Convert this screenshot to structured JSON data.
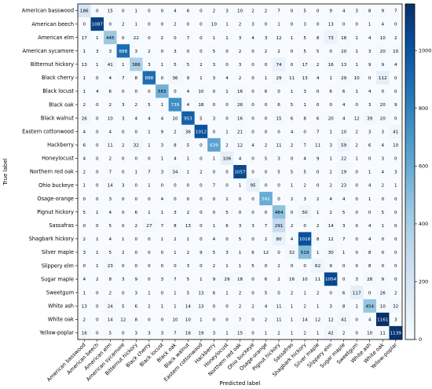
{
  "chart_data": {
    "type": "heatmap",
    "title": "",
    "xlabel": "Predicted label",
    "ylabel": "True label",
    "labels": [
      "American basswood",
      "American beech",
      "American elm",
      "American sycamore",
      "Bitternut hickory",
      "Black cherry",
      "Black locust",
      "Black oak",
      "Black walnut",
      "Eastern cottonwood",
      "Hackberry",
      "Honeylocust",
      "Northern red oak",
      "Ohio buckeye",
      "Osage-orange",
      "Pignut hickory",
      "Sassafras",
      "Shagbark hickory",
      "Silver maple",
      "Slippery elm",
      "Sugar maple",
      "Sweetgum",
      "White ash",
      "White oak",
      "Yellow-poplar"
    ],
    "matrix": [
      [
        186,
        0,
        15,
        0,
        1,
        0,
        0,
        4,
        6,
        0,
        2,
        3,
        10,
        2,
        2,
        7,
        0,
        5,
        0,
        9,
        4,
        3,
        8,
        9,
        7
      ],
      [
        0,
        1087,
        0,
        2,
        1,
        0,
        0,
        2,
        0,
        0,
        10,
        1,
        2,
        3,
        0,
        1,
        0,
        3,
        0,
        13,
        0,
        0,
        1,
        4,
        0
      ],
      [
        17,
        1,
        445,
        0,
        22,
        0,
        2,
        0,
        7,
        0,
        1,
        1,
        3,
        4,
        3,
        12,
        1,
        5,
        8,
        73,
        18,
        1,
        4,
        10,
        2
      ],
      [
        1,
        3,
        3,
        888,
        3,
        2,
        0,
        3,
        0,
        0,
        5,
        0,
        2,
        0,
        2,
        2,
        0,
        5,
        5,
        0,
        20,
        1,
        3,
        20,
        10
      ],
      [
        13,
        1,
        41,
        1,
        386,
        3,
        1,
        5,
        5,
        2,
        3,
        0,
        3,
        0,
        0,
        74,
        0,
        17,
        2,
        16,
        13,
        1,
        9,
        9,
        4
      ],
      [
        1,
        0,
        4,
        7,
        8,
        888,
        0,
        36,
        9,
        1,
        3,
        4,
        2,
        0,
        1,
        29,
        11,
        13,
        4,
        1,
        29,
        10,
        0,
        112,
        0
      ],
      [
        1,
        4,
        6,
        0,
        0,
        0,
        563,
        0,
        4,
        10,
        0,
        1,
        16,
        0,
        6,
        0,
        1,
        3,
        0,
        6,
        6,
        1,
        4,
        0,
        0
      ],
      [
        2,
        0,
        2,
        3,
        2,
        5,
        1,
        739,
        4,
        18,
        0,
        0,
        26,
        0,
        0,
        6,
        5,
        1,
        0,
        0,
        4,
        0,
        3,
        20,
        9
      ],
      [
        26,
        0,
        10,
        3,
        4,
        4,
        4,
        10,
        953,
        5,
        3,
        0,
        16,
        0,
        0,
        15,
        6,
        8,
        6,
        20,
        4,
        12,
        39,
        20,
        0
      ],
      [
        4,
        0,
        4,
        0,
        0,
        1,
        9,
        2,
        36,
        1012,
        0,
        1,
        21,
        0,
        0,
        0,
        4,
        0,
        7,
        1,
        10,
        2,
        3,
        3,
        41
      ],
      [
        6,
        0,
        11,
        2,
        32,
        1,
        3,
        8,
        5,
        0,
        639,
        2,
        12,
        4,
        2,
        11,
        2,
        7,
        11,
        3,
        59,
        2,
        6,
        4,
        10
      ],
      [
        4,
        0,
        2,
        0,
        0,
        0,
        1,
        4,
        1,
        0,
        1,
        106,
        4,
        0,
        5,
        3,
        0,
        4,
        9,
        1,
        22,
        1,
        0,
        3,
        0
      ],
      [
        2,
        0,
        7,
        0,
        1,
        7,
        3,
        34,
        1,
        2,
        0,
        0,
        1057,
        0,
        0,
        5,
        5,
        5,
        0,
        2,
        19,
        0,
        1,
        4,
        3
      ],
      [
        1,
        0,
        14,
        3,
        0,
        1,
        0,
        0,
        0,
        0,
        7,
        0,
        1,
        95,
        0,
        0,
        1,
        2,
        0,
        2,
        23,
        0,
        4,
        2,
        1
      ],
      [
        0,
        0,
        3,
        0,
        0,
        0,
        4,
        0,
        0,
        0,
        0,
        1,
        0,
        0,
        591,
        0,
        2,
        3,
        2,
        4,
        4,
        0,
        1,
        0,
        0
      ],
      [
        5,
        1,
        4,
        0,
        6,
        1,
        1,
        3,
        2,
        0,
        0,
        5,
        0,
        0,
        0,
        484,
        0,
        50,
        1,
        2,
        5,
        0,
        0,
        5,
        0
      ],
      [
        0,
        0,
        5,
        0,
        2,
        27,
        7,
        8,
        13,
        0,
        1,
        6,
        3,
        3,
        7,
        291,
        2,
        0,
        2,
        14,
        3,
        0,
        4,
        1,
        0
      ],
      [
        2,
        1,
        4,
        1,
        0,
        0,
        1,
        2,
        1,
        0,
        4,
        0,
        5,
        0,
        2,
        80,
        4,
        1018,
        8,
        12,
        7,
        0,
        4,
        0,
        0
      ],
      [
        3,
        1,
        5,
        2,
        0,
        0,
        0,
        1,
        2,
        9,
        5,
        3,
        1,
        6,
        12,
        0,
        32,
        519,
        1,
        30,
        1,
        0,
        8,
        0,
        0
      ],
      [
        0,
        1,
        23,
        0,
        0,
        0,
        0,
        0,
        3,
        0,
        2,
        1,
        1,
        5,
        0,
        2,
        0,
        0,
        62,
        9,
        0,
        0,
        8,
        0,
        0
      ],
      [
        4,
        2,
        8,
        3,
        9,
        0,
        3,
        7,
        5,
        1,
        9,
        29,
        18,
        0,
        6,
        2,
        16,
        10,
        11,
        1054,
        0,
        3,
        28,
        9,
        0
      ],
      [
        1,
        0,
        2,
        0,
        3,
        1,
        0,
        1,
        5,
        13,
        6,
        1,
        2,
        0,
        5,
        0,
        2,
        1,
        2,
        0,
        6,
        117,
        0,
        26,
        2
      ],
      [
        13,
        0,
        24,
        5,
        6,
        2,
        1,
        1,
        14,
        13,
        0,
        0,
        2,
        2,
        4,
        11,
        1,
        2,
        1,
        3,
        8,
        1,
        454,
        10,
        32
      ],
      [
        2,
        0,
        14,
        12,
        8,
        0,
        0,
        10,
        10,
        1,
        0,
        0,
        7,
        0,
        2,
        11,
        1,
        14,
        12,
        12,
        41,
        0,
        4,
        1161,
        3
      ],
      [
        16,
        0,
        5,
        0,
        3,
        3,
        3,
        7,
        16,
        19,
        3,
        1,
        15,
        0,
        1,
        2,
        1,
        2,
        1,
        42,
        2,
        0,
        10,
        11,
        1139
      ]
    ],
    "vmin": 0,
    "vmax": 1161,
    "colorbar_ticks": [
      0,
      200,
      400,
      600,
      800,
      1000
    ],
    "colormap": "Blues",
    "grid": false,
    "colorbar": "right"
  }
}
